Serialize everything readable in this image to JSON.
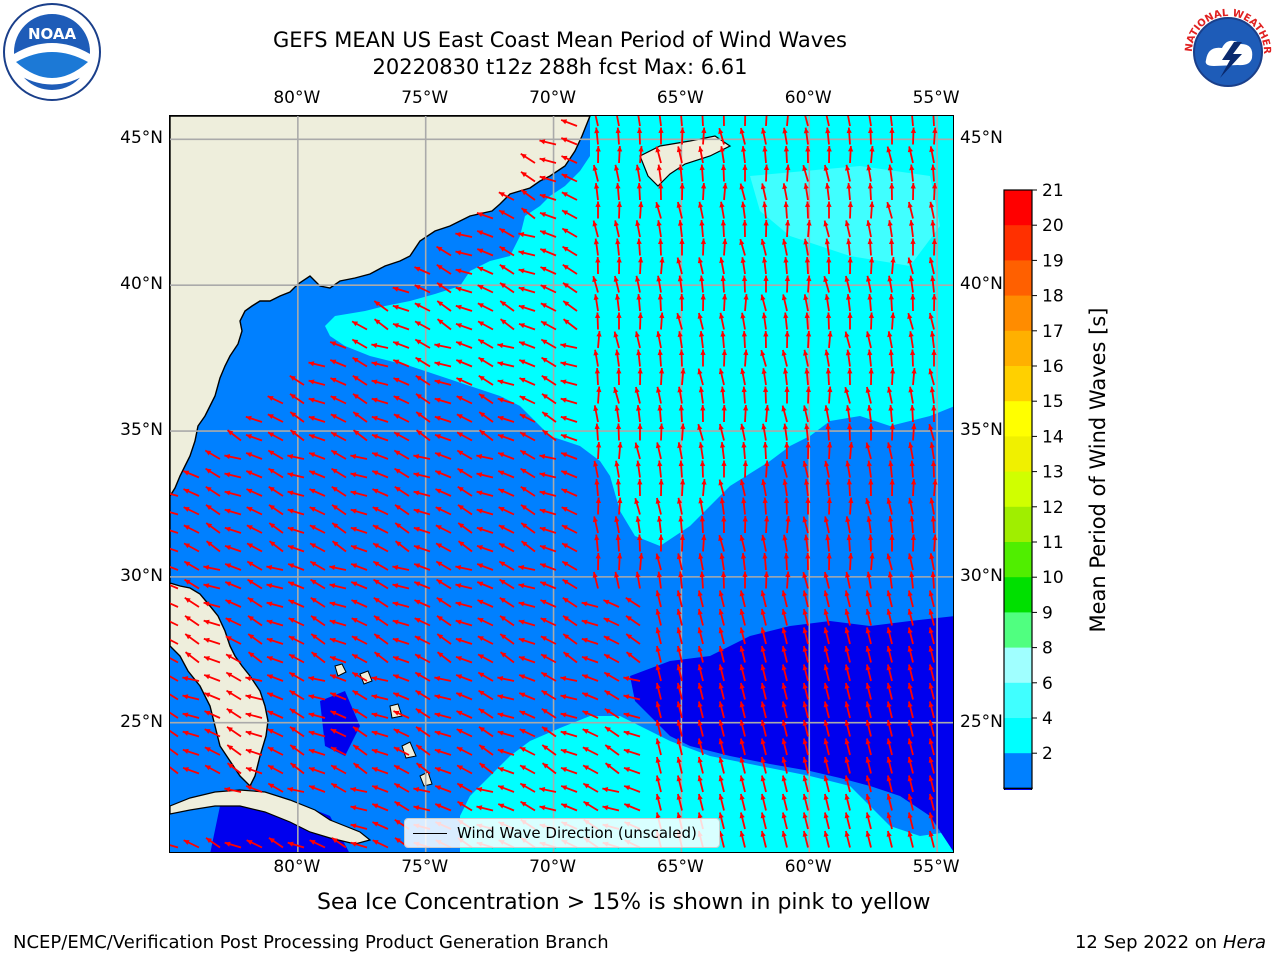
{
  "title": {
    "line1": "GEFS MEAN US East Coast Mean Period of Wind Waves",
    "line2": "20220830 t12z 288h fcst   Max: 6.61"
  },
  "map": {
    "longitude_labels": [
      "80°W",
      "75°W",
      "70°W",
      "65°W",
      "60°W",
      "55°W"
    ],
    "latitude_labels": [
      "45°N",
      "40°N",
      "35°N",
      "30°N",
      "25°N"
    ],
    "lon_range": [
      -85,
      -54.3
    ],
    "lat_range": [
      20.5,
      45.8
    ],
    "grid": true,
    "land_color": "#eeeedc",
    "field_colors": [
      "#0000ee",
      "#0080ff",
      "#00ffff",
      "#a0ffff"
    ],
    "vector_color": "#ff0000",
    "legend": {
      "label": "Wind Wave Direction (unscaled)",
      "position": "bottom-center"
    }
  },
  "colorbar": {
    "title": "Mean Period of Wind Waves [s]",
    "ticks": [
      "21",
      "20",
      "19",
      "18",
      "17",
      "16",
      "15",
      "14",
      "13",
      "12",
      "11",
      "10",
      "9",
      "8",
      "6",
      "4",
      "2"
    ],
    "colors": [
      "#0080ff",
      "#00ffff",
      "#40ffff",
      "#a0ffff",
      "#50ff80",
      "#00e000",
      "#50ee00",
      "#a0ee00",
      "#d0ff00",
      "#f0f000",
      "#ffff00",
      "#ffd000",
      "#ffb000",
      "#ff8c00",
      "#ff6000",
      "#ff3000",
      "#ff0000"
    ],
    "extend_color": "#0000ee"
  },
  "note": "Sea Ice Concentration > 15% is shown in pink to yellow",
  "footer": {
    "left": "NCEP/EMC/Verification Post Processing Product Generation Branch",
    "right_date": "12 Sep 2022 on",
    "right_machine": "Hera"
  },
  "logos": {
    "noaa": "NOAA",
    "nws": "NATIONAL WEATHER SERVICE"
  }
}
